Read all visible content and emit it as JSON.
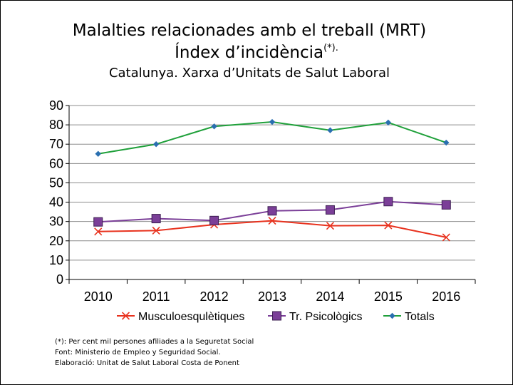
{
  "chart_data": {
    "type": "line",
    "title": "Malalties relacionades amb el treball (MRT)",
    "title_line2": "Índex d’incidència",
    "title_line2_sup": "(*).",
    "subtitle": "Catalunya. Xarxa d’Unitats de Salut Laboral",
    "xlabel": "",
    "ylabel": "",
    "categories": [
      "2010",
      "2011",
      "2012",
      "2013",
      "2014",
      "2015",
      "2016"
    ],
    "ylim": [
      0,
      90
    ],
    "yticks": [
      "0",
      "10",
      "20",
      "30",
      "40",
      "50",
      "60",
      "70",
      "80",
      "90"
    ],
    "grid": true,
    "legend_position": "bottom",
    "series": [
      {
        "name": "Musculoesqulètiques",
        "color": "#e8321e",
        "marker": "x",
        "values": [
          24.8,
          25.3,
          28.4,
          30.4,
          27.8,
          28.0,
          21.8
        ]
      },
      {
        "name": "Tr. Psicològics",
        "color": "#7b3f98",
        "marker": "square",
        "values": [
          29.8,
          31.5,
          30.5,
          35.5,
          36.0,
          40.3,
          38.6
        ]
      },
      {
        "name": "Totals",
        "color": "#1fa03a",
        "marker": "diamond",
        "values": [
          65.0,
          70.0,
          79.2,
          81.5,
          77.2,
          81.2,
          70.8
        ]
      }
    ]
  },
  "notes": [
    "(*): Per cent mil persones afiliades a la Seguretat Social",
    "Font: Ministerio de Empleo y Seguridad Social.",
    "Elaboració: Unitat de Salut Laboral Costa de Ponent"
  ]
}
